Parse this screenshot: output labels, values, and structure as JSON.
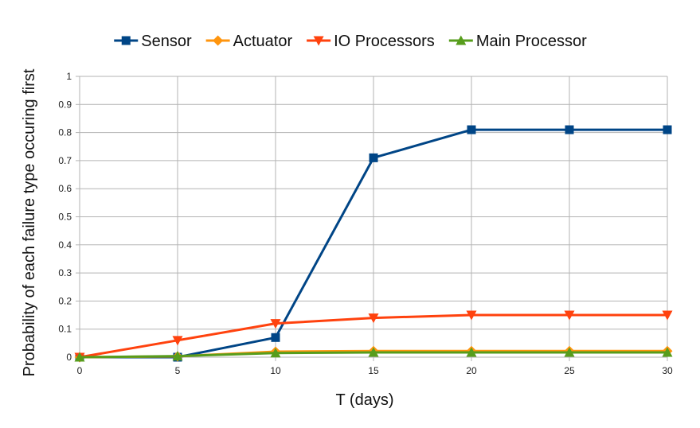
{
  "chart_data": {
    "type": "line",
    "title": "",
    "xlabel": "T (days)",
    "ylabel": "Probability of each failure type occuring first",
    "x": [
      0,
      5,
      10,
      15,
      20,
      25,
      30
    ],
    "xlim": [
      0,
      30
    ],
    "ylim": [
      0,
      1
    ],
    "xticks": [
      "0",
      "5",
      "10",
      "15",
      "20",
      "25",
      "30"
    ],
    "yticks": [
      "0",
      "0.1",
      "0.2",
      "0.3",
      "0.4",
      "0.5",
      "0.6",
      "0.7",
      "0.8",
      "0.9",
      "1"
    ],
    "grid": true,
    "legend_position": "top",
    "series": [
      {
        "name": "Sensor",
        "color": "#004586",
        "marker": "square",
        "values": [
          0,
          0,
          0.07,
          0.71,
          0.81,
          0.81,
          0.81
        ]
      },
      {
        "name": "Actuator",
        "color": "#ff950e",
        "marker": "diamond",
        "values": [
          0,
          0.003,
          0.02,
          0.022,
          0.022,
          0.022,
          0.022
        ]
      },
      {
        "name": "IO Processors",
        "color": "#ff420e",
        "marker": "triangle-down",
        "values": [
          0,
          0.06,
          0.12,
          0.14,
          0.15,
          0.15,
          0.15
        ]
      },
      {
        "name": "Main Processor",
        "color": "#579d1c",
        "marker": "triangle-up",
        "values": [
          0,
          0.004,
          0.015,
          0.017,
          0.017,
          0.017,
          0.017
        ]
      }
    ]
  }
}
